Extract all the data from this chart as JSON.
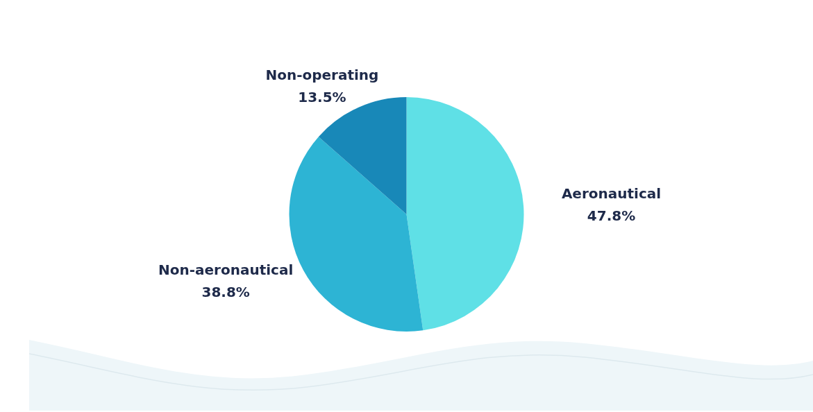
{
  "chart_data": {
    "type": "pie",
    "categories": [
      "Aeronautical",
      "Non-aeronautical",
      "Non-operating"
    ],
    "values": [
      47.8,
      38.8,
      13.5
    ],
    "value_labels": [
      "47.8%",
      "38.8%",
      "13.5%"
    ],
    "colors": [
      "#5fe0e6",
      "#2db4d4",
      "#1888b8"
    ],
    "legend": false
  }
}
